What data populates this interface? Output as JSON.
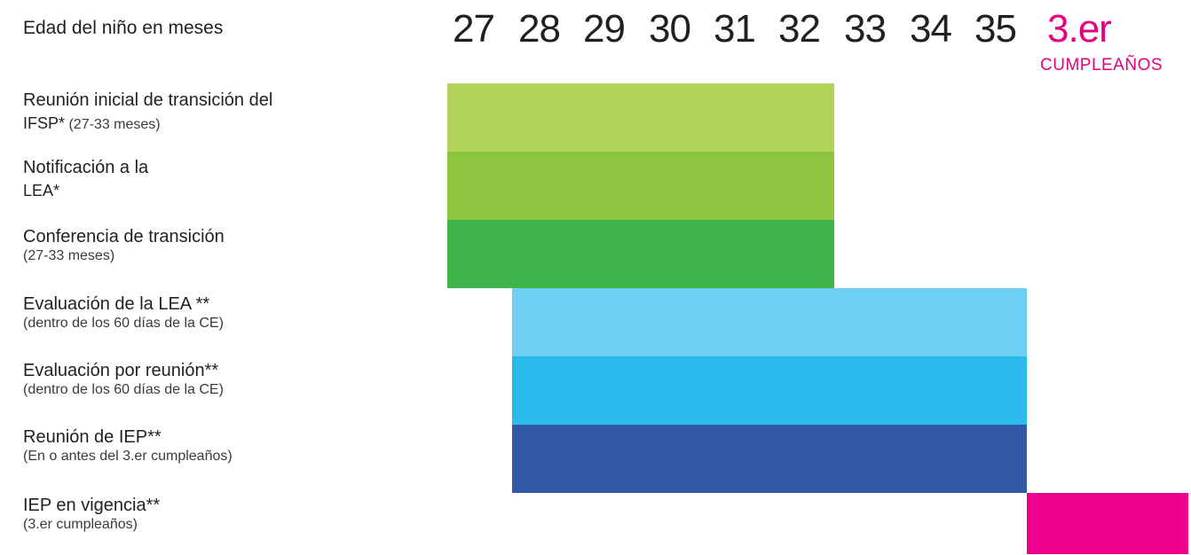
{
  "chart_data": {
    "type": "bar",
    "xlabel": "Edad del niño en meses",
    "x_ticks": [
      "27",
      "28",
      "29",
      "30",
      "31",
      "32",
      "33",
      "34",
      "35",
      "3.er"
    ],
    "x_tick_special": {
      "label": "3.er",
      "sublabel": "CUMPLEAÑOS",
      "color": "#e6007e"
    },
    "rows": [
      {
        "line1": "Reunión inicial de transición del",
        "line2_bold": "IFSP*",
        "line2_note": "(27-33 meses)",
        "start": 27,
        "end": 33,
        "color": "#b2d45a"
      },
      {
        "line1": "Notificación a la",
        "line2_bold": "LEA*",
        "line2_note": "",
        "start": 27,
        "end": 33,
        "color": "#8cc63f"
      },
      {
        "line1": "Conferencia de transición",
        "line2_bold": "",
        "line2_note": "(27-33 meses)",
        "start": 27,
        "end": 33,
        "color": "#3db54a"
      },
      {
        "line1": "Evaluación de la LEA **",
        "line2_bold": "",
        "line2_note": "(dentro de los 60 días de la CE)",
        "start": 28,
        "end": 36,
        "color": "#6dd0f2"
      },
      {
        "line1": "Evaluación por reunión**",
        "line2_bold": "",
        "line2_note": "(dentro de los 60 días de la CE)",
        "start": 28,
        "end": 36,
        "color": "#2bbaec"
      },
      {
        "line1": "Reunión de IEP**",
        "line2_bold": "",
        "line2_note": "(En o antes del 3.er cumpleaños)",
        "start": 28,
        "end": 36,
        "color": "#3359a6"
      },
      {
        "line1": "IEP en vigencia**",
        "line2_bold": "",
        "line2_note": "(3.er cumpleaños)",
        "start": 36,
        "end": 38.5,
        "color": "#ec008c"
      }
    ]
  }
}
